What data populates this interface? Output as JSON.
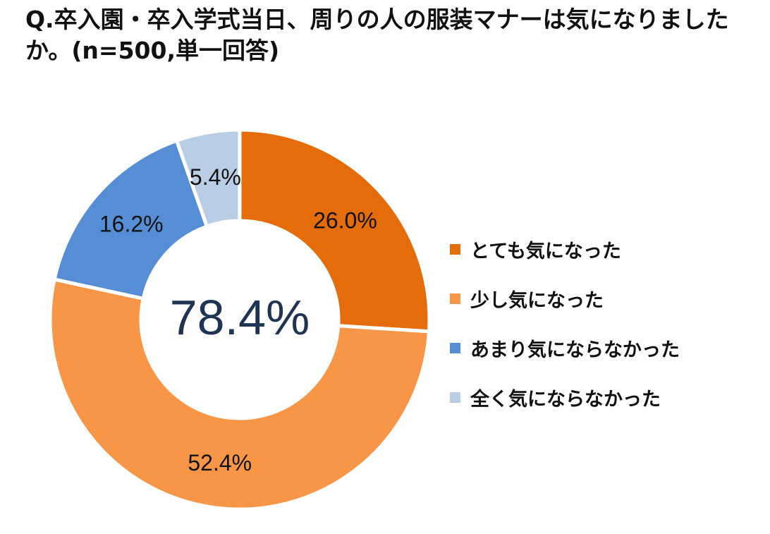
{
  "chart_data": {
    "type": "pie",
    "title": "Q.卒入園・卒入学式当日、周りの人の服装マナーは気になりましたか。(n=500,単一回答)",
    "center_label": "78.4%",
    "categories": [
      "とても気になった",
      "少し気になった",
      "あまり気にならなかった",
      "全く気にならなかった"
    ],
    "values": [
      26.0,
      52.4,
      16.2,
      5.4
    ],
    "value_labels": [
      "26.0%",
      "52.4%",
      "16.2%",
      "5.4%"
    ],
    "colors": [
      "#e46c0a",
      "#f79646",
      "#558ed5",
      "#b9cde5"
    ],
    "legend_position": "right",
    "donut": true
  }
}
